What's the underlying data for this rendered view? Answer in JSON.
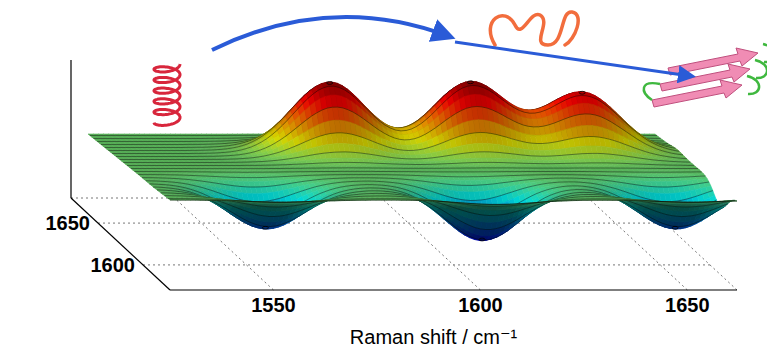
{
  "chart_data": {
    "type": "surface",
    "x_label": "Raman shift / cm⁻¹",
    "xlim": [
      1525,
      1662
    ],
    "xticks": [
      1550,
      1600,
      1650
    ],
    "ylim": [
      1570,
      1680
    ],
    "yticks": [
      1600,
      1650
    ],
    "grid": true,
    "peaks": [
      {
        "x": 1578,
        "y": 1650,
        "height": 1
      },
      {
        "x": 1612,
        "y": 1650,
        "height": 1
      },
      {
        "x": 1639,
        "y": 1650,
        "height": 0.85
      },
      {
        "x": 1552,
        "y": 1592,
        "height": -0.6
      },
      {
        "x": 1604,
        "y": 1590,
        "height": -0.75
      },
      {
        "x": 1651,
        "y": 1592,
        "height": -0.6
      }
    ]
  }
}
